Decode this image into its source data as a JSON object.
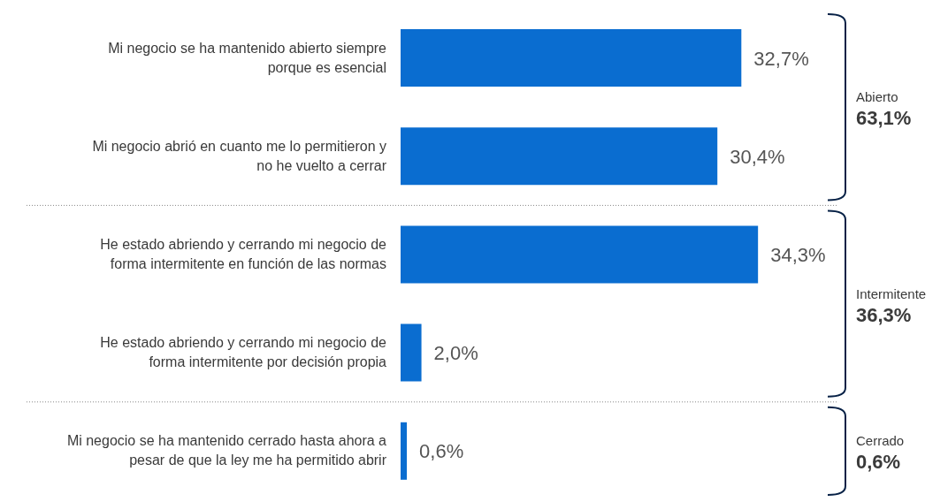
{
  "chart_data": {
    "type": "bar",
    "orientation": "horizontal",
    "categories": [
      "Mi negocio se ha mantenido abierto siempre porque es esencial",
      "Mi negocio abrió en cuanto me lo permitieron y no he vuelto a cerrar",
      "He estado abriendo y cerrando mi negocio de forma intermitente en función de las normas",
      "He estado abriendo y cerrando mi negocio de forma intermitente por decisión propia",
      "Mi negocio se ha mantenido cerrado hasta ahora a pesar de que la ley me ha permitido abrir"
    ],
    "values": [
      32.7,
      30.4,
      34.3,
      2.0,
      0.6
    ],
    "value_labels": [
      "32,7%",
      "30,4%",
      "34,3%",
      "2,0%",
      "0,6%"
    ],
    "color": "#0a6dd0",
    "annotations": [
      "Abierto",
      "63,1%",
      "Intermitente",
      "36,3%",
      "Cerrado",
      "0,6%"
    ],
    "legend": false
  }
}
